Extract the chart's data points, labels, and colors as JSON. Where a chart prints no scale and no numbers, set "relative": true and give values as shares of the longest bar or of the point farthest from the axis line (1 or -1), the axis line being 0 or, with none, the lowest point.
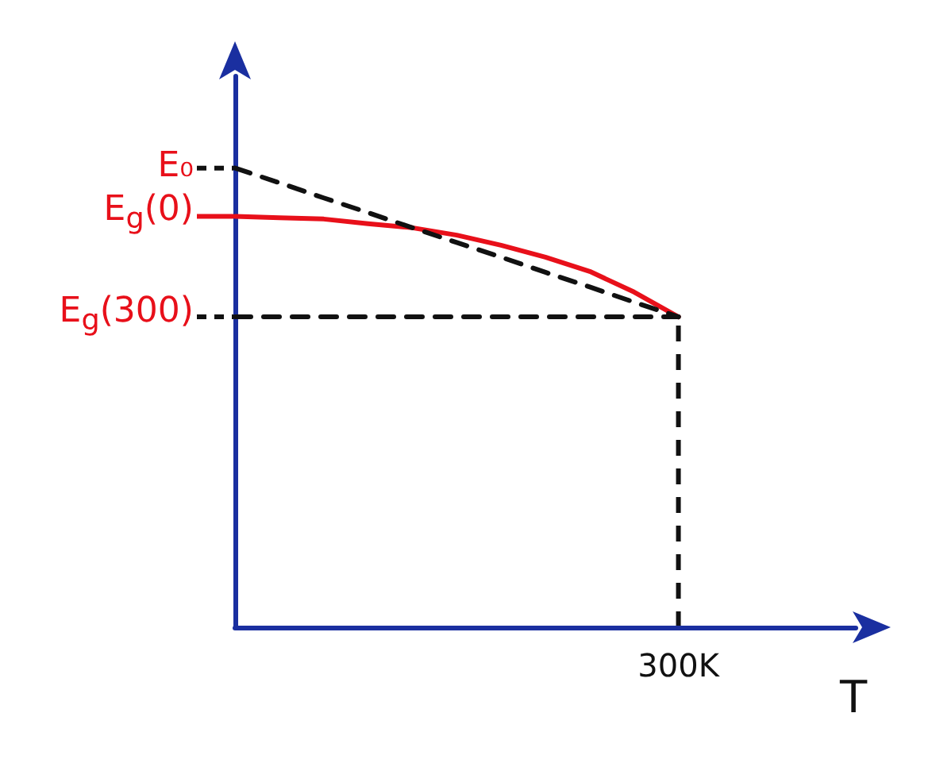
{
  "chart_data": {
    "type": "line",
    "xlabel": "T",
    "relative": true,
    "legend": "left",
    "grid": false,
    "marker": "none",
    "categories": [
      null,
      null,
      null,
      null,
      null,
      null,
      null,
      null,
      null,
      null,
      null,
      null,
      null,
      null,
      null
    ],
    "annotations": [
      "300K"
    ],
    "series": [
      {
        "name": "E$_{g}$(0)",
        "color": "#e8101a",
        "line_style": "solid",
        "values": [
          0.895,
          0.892,
          0.889,
          0.879,
          0.87,
          0.854,
          0.832,
          0.806,
          0.775,
          0.73,
          0.676,
          null,
          null,
          null,
          null
        ]
      },
      {
        "name": "E₀",
        "color": "#111111",
        "line_style": "dashed",
        "values": [
          1,
          0.968,
          0.935,
          0.903,
          0.87,
          0.838,
          0.806,
          0.773,
          0.741,
          0.708,
          0.676,
          null,
          null,
          null,
          null
        ]
      },
      {
        "name": "E$_{g}$(300)",
        "color": "#111111",
        "line_style": "dashed",
        "values": [
          0.676,
          0.676,
          0.676,
          0.676,
          0.676,
          0.676,
          0.676,
          0.676,
          0.676,
          0.676,
          0.676,
          null,
          null,
          null,
          null
        ]
      }
    ]
  }
}
